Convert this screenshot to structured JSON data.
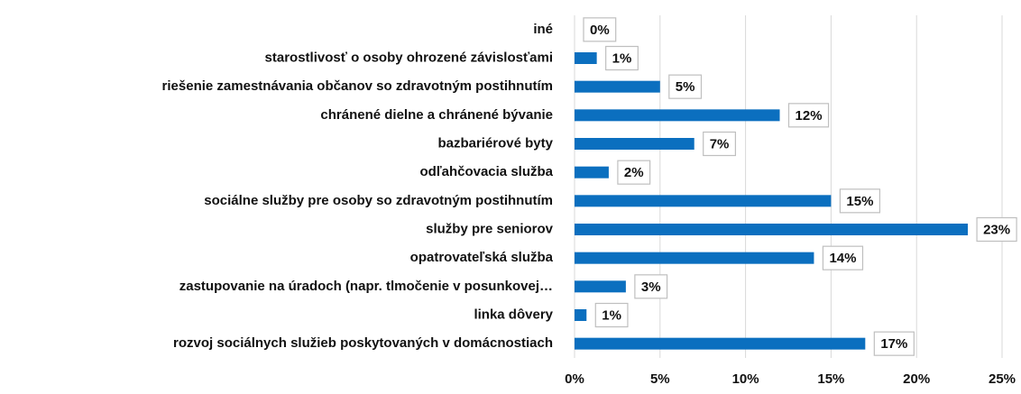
{
  "chart_data": {
    "type": "bar",
    "orientation": "horizontal",
    "categories": [
      "iné",
      "starostlivosť o osoby ohrozené závislosťami",
      "riešenie zamestnávania občanov so zdravotným postihnutím",
      "chránené dielne a chránené bývanie",
      "bazbariérové byty",
      "odľahčovacia služba",
      "sociálne služby pre osoby so zdravotným postihnutím",
      "služby pre seniorov",
      "opatrovateľská služba",
      "zastupovanie na úradoch (napr. tlmočenie v posunkovej…",
      "linka dôvery",
      "rozvoj sociálnych služieb poskytovaných v domácnostiach"
    ],
    "values": [
      0,
      1.3,
      5,
      12,
      7,
      2,
      15,
      23,
      14,
      3,
      0.7,
      17
    ],
    "value_labels": [
      "0%",
      "1%",
      "5%",
      "12%",
      "7%",
      "2%",
      "15%",
      "23%",
      "14%",
      "3%",
      "1%",
      "17%"
    ],
    "color": "#0b6fbf",
    "xlim": [
      0,
      25
    ],
    "xticks": [
      {
        "value": 0,
        "label": "0%"
      },
      {
        "value": 5,
        "label": "5%"
      },
      {
        "value": 10,
        "label": "10%"
      },
      {
        "value": 15,
        "label": "15%"
      },
      {
        "value": 20,
        "label": "20%"
      },
      {
        "value": 25,
        "label": "25%"
      }
    ],
    "grid": true
  }
}
